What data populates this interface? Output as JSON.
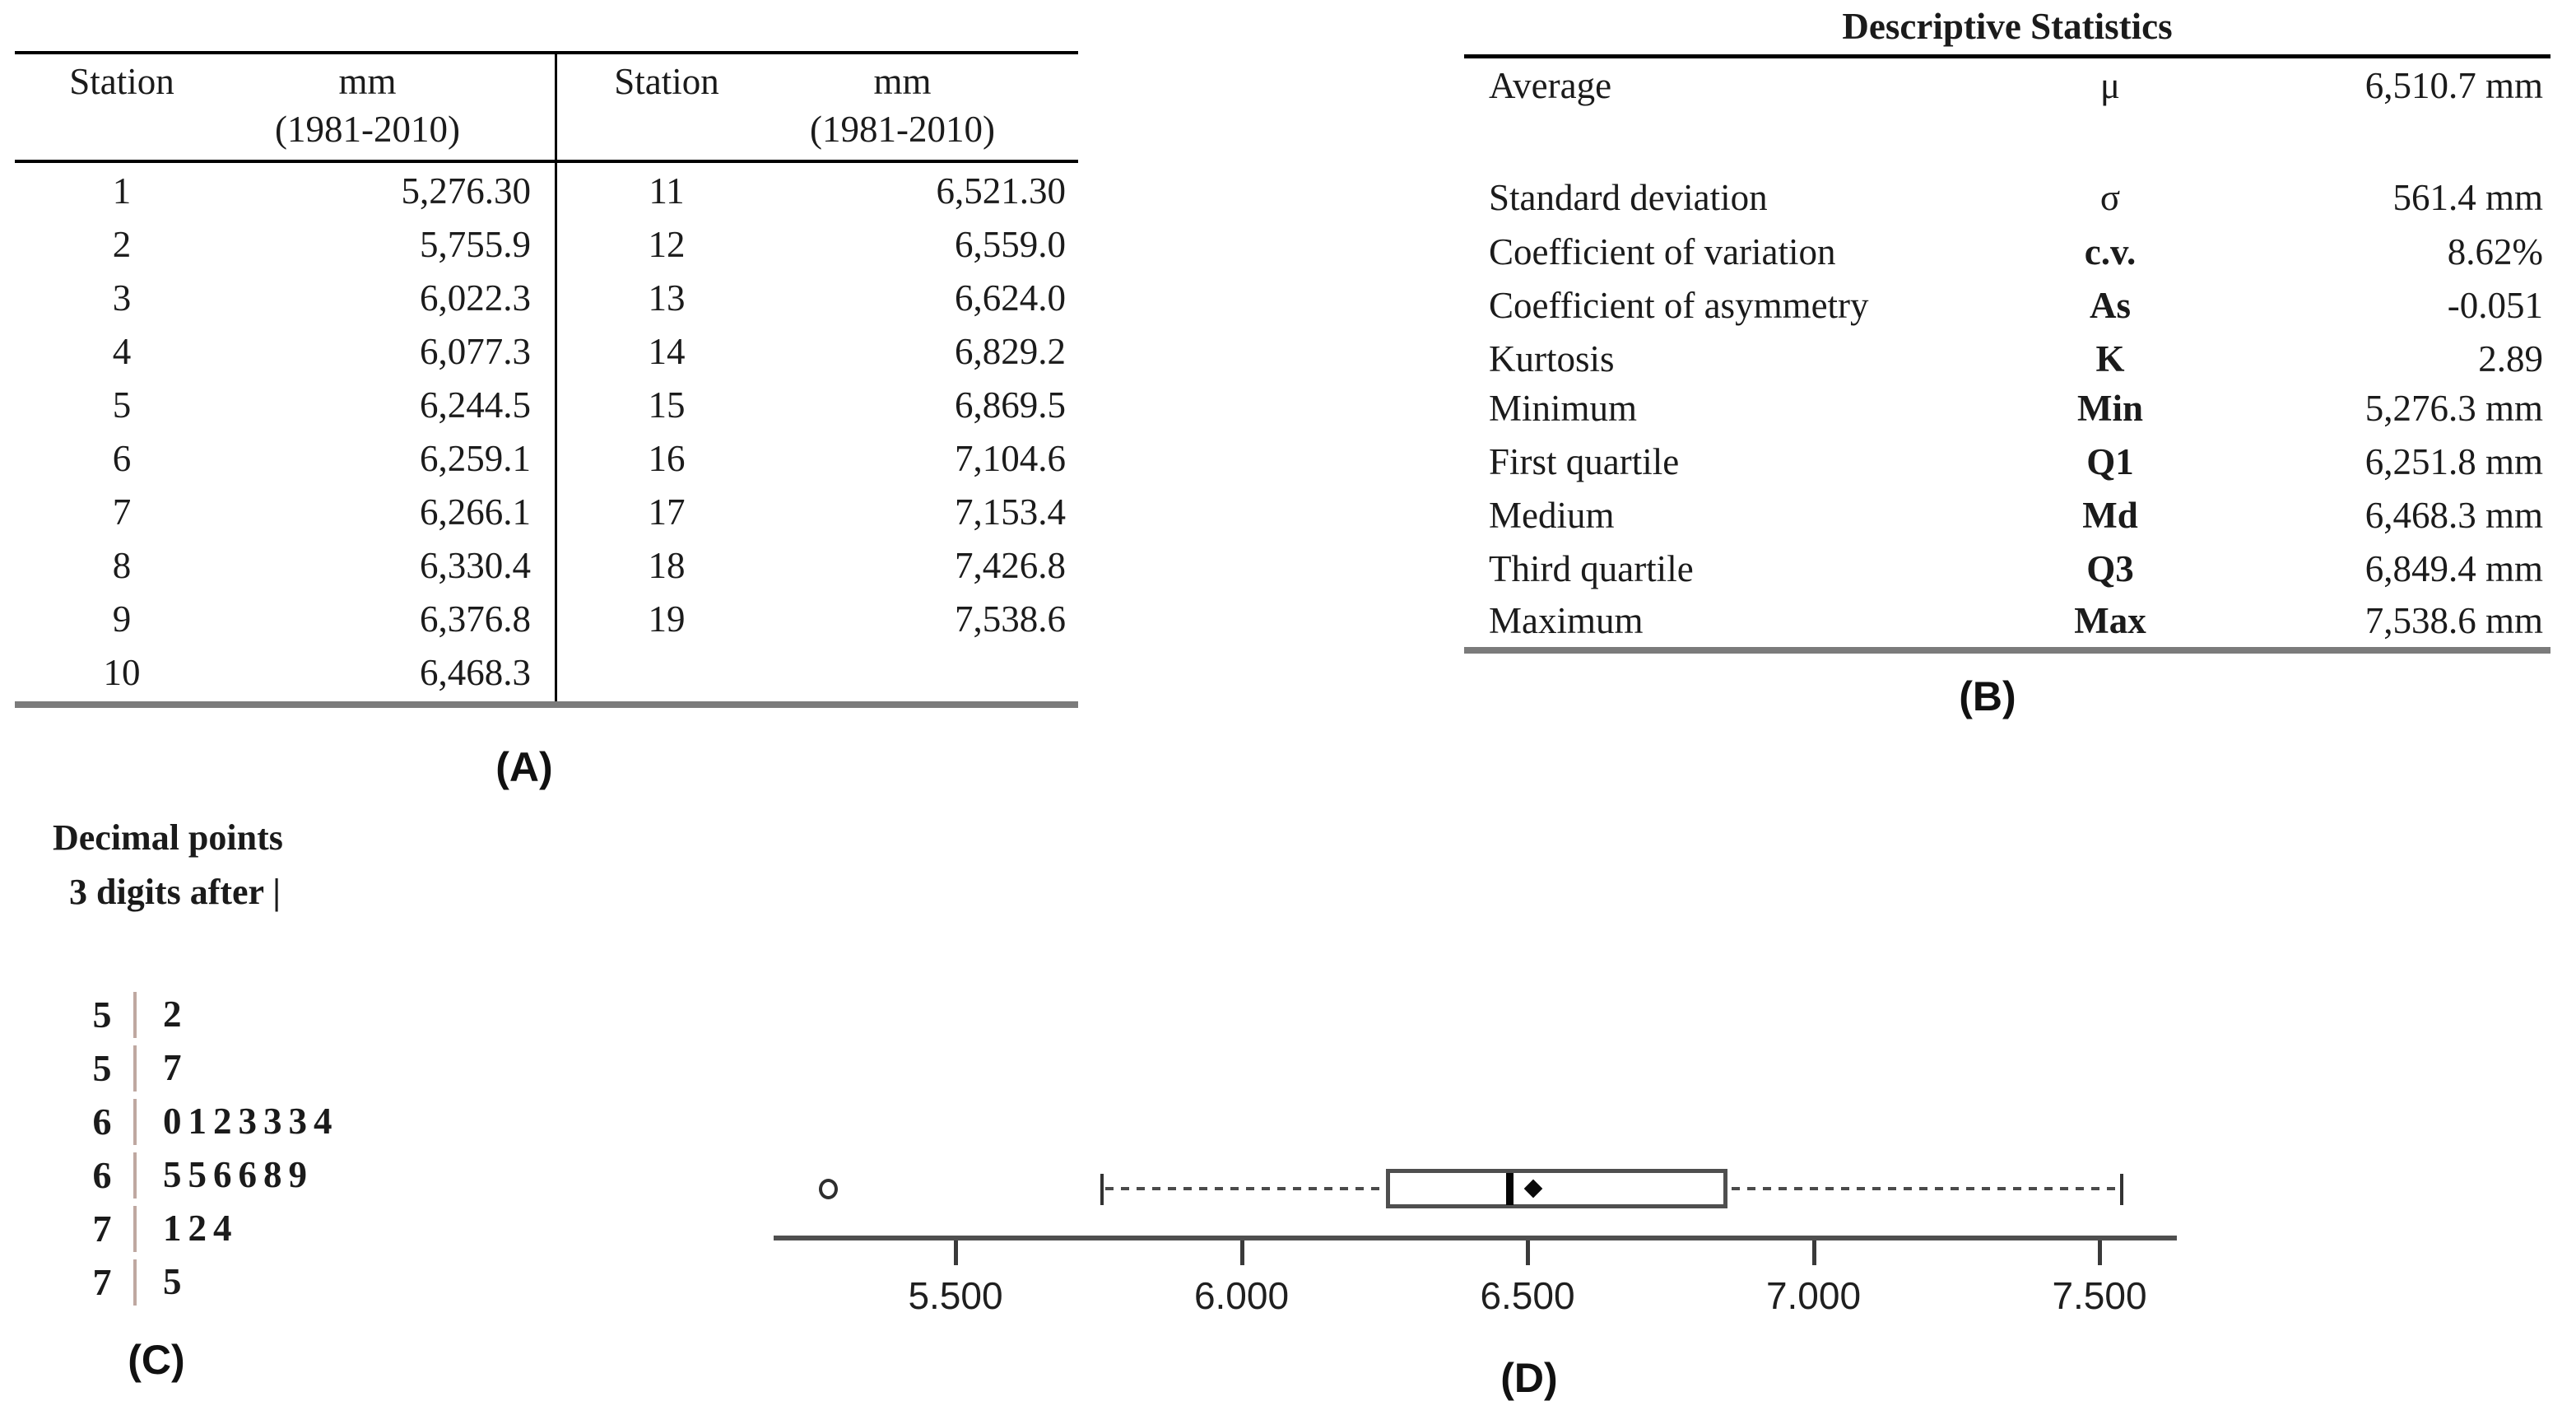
{
  "colors": {
    "text": "#1b1b1b",
    "rule_black": "#000000",
    "rule_gray": "#7b7b7b"
  },
  "table_a": {
    "label": "(A)",
    "header": {
      "station": "Station",
      "unit": "mm",
      "period": "(1981-2010)"
    },
    "left_rows": [
      {
        "station": "1",
        "value": "5,276.30"
      },
      {
        "station": "2",
        "value": "5,755.9"
      },
      {
        "station": "3",
        "value": "6,022.3"
      },
      {
        "station": "4",
        "value": "6,077.3"
      },
      {
        "station": "5",
        "value": "6,244.5"
      },
      {
        "station": "6",
        "value": "6,259.1"
      },
      {
        "station": "7",
        "value": "6,266.1"
      },
      {
        "station": "8",
        "value": "6,330.4"
      },
      {
        "station": "9",
        "value": "6,376.8"
      },
      {
        "station": "10",
        "value": "6,468.3"
      }
    ],
    "right_rows": [
      {
        "station": "11",
        "value": "6,521.30"
      },
      {
        "station": "12",
        "value": "6,559.0"
      },
      {
        "station": "13",
        "value": "6,624.0"
      },
      {
        "station": "14",
        "value": "6,829.2"
      },
      {
        "station": "15",
        "value": "6,869.5"
      },
      {
        "station": "16",
        "value": "7,104.6"
      },
      {
        "station": "17",
        "value": "7,153.4"
      },
      {
        "station": "18",
        "value": "7,426.8"
      },
      {
        "station": "19",
        "value": "7,538.6"
      }
    ]
  },
  "table_b": {
    "label": "(B)",
    "title": "Descriptive Statistics",
    "rows": [
      {
        "name": "Average",
        "symbol": "μ",
        "value": "6,510.7 mm",
        "symbol_bold": false
      },
      {
        "name": "Standard deviation",
        "symbol": "σ",
        "value": "561.4 mm",
        "symbol_bold": false
      },
      {
        "name": "Coefficient of variation",
        "symbol": "c.v.",
        "value": "8.62%",
        "symbol_bold": true
      },
      {
        "name": "Coefficient of asymmetry",
        "symbol": "As",
        "value": "-0.051",
        "symbol_bold": true
      },
      {
        "name": "Kurtosis",
        "symbol": "K",
        "value": "2.89",
        "symbol_bold": true
      },
      {
        "name": "Minimum",
        "symbol": "Min",
        "value": "5,276.3 mm",
        "symbol_bold": true
      },
      {
        "name": "First quartile",
        "symbol": "Q1",
        "value": "6,251.8 mm",
        "symbol_bold": true
      },
      {
        "name": "Medium",
        "symbol": "Md",
        "value": "6,468.3 mm",
        "symbol_bold": true
      },
      {
        "name": "Third quartile",
        "symbol": "Q3",
        "value": "6,849.4 mm",
        "symbol_bold": true
      },
      {
        "name": "Maximum",
        "symbol": "Max",
        "value": "7,538.6 mm",
        "symbol_bold": true
      }
    ]
  },
  "stem_leaf": {
    "label": "(C)",
    "header_line1": "Decimal points",
    "header_line2": "3 digits after |",
    "rows": [
      {
        "stem": "5",
        "leaves": "2"
      },
      {
        "stem": "5",
        "leaves": "7"
      },
      {
        "stem": "6",
        "leaves": "0123334"
      },
      {
        "stem": "6",
        "leaves": "556689"
      },
      {
        "stem": "7",
        "leaves": "124"
      },
      {
        "stem": "7",
        "leaves": "5"
      }
    ]
  },
  "chart_data": {
    "type": "boxplot",
    "orientation": "horizontal",
    "label": "(D)",
    "title": "",
    "xlabel": "",
    "xlim": [
      5175,
      7600
    ],
    "axis_ticks": [
      5500,
      6000,
      6500,
      7000,
      7500
    ],
    "axis_tick_labels": [
      "5.500",
      "6.000",
      "6.500",
      "7.000",
      "7.500"
    ],
    "stats": {
      "whisker_low": 5755.9,
      "q1": 6251.8,
      "median": 6468.3,
      "mean": 6510.7,
      "q3": 6849.4,
      "whisker_high": 7538.6
    },
    "outliers": [
      5276.3
    ],
    "values": [
      5276.3,
      5755.9,
      6022.3,
      6077.3,
      6244.5,
      6259.1,
      6266.1,
      6330.4,
      6376.8,
      6468.3,
      6521.3,
      6559.0,
      6624.0,
      6829.2,
      6869.5,
      7104.6,
      7153.4,
      7426.8,
      7538.6
    ]
  }
}
